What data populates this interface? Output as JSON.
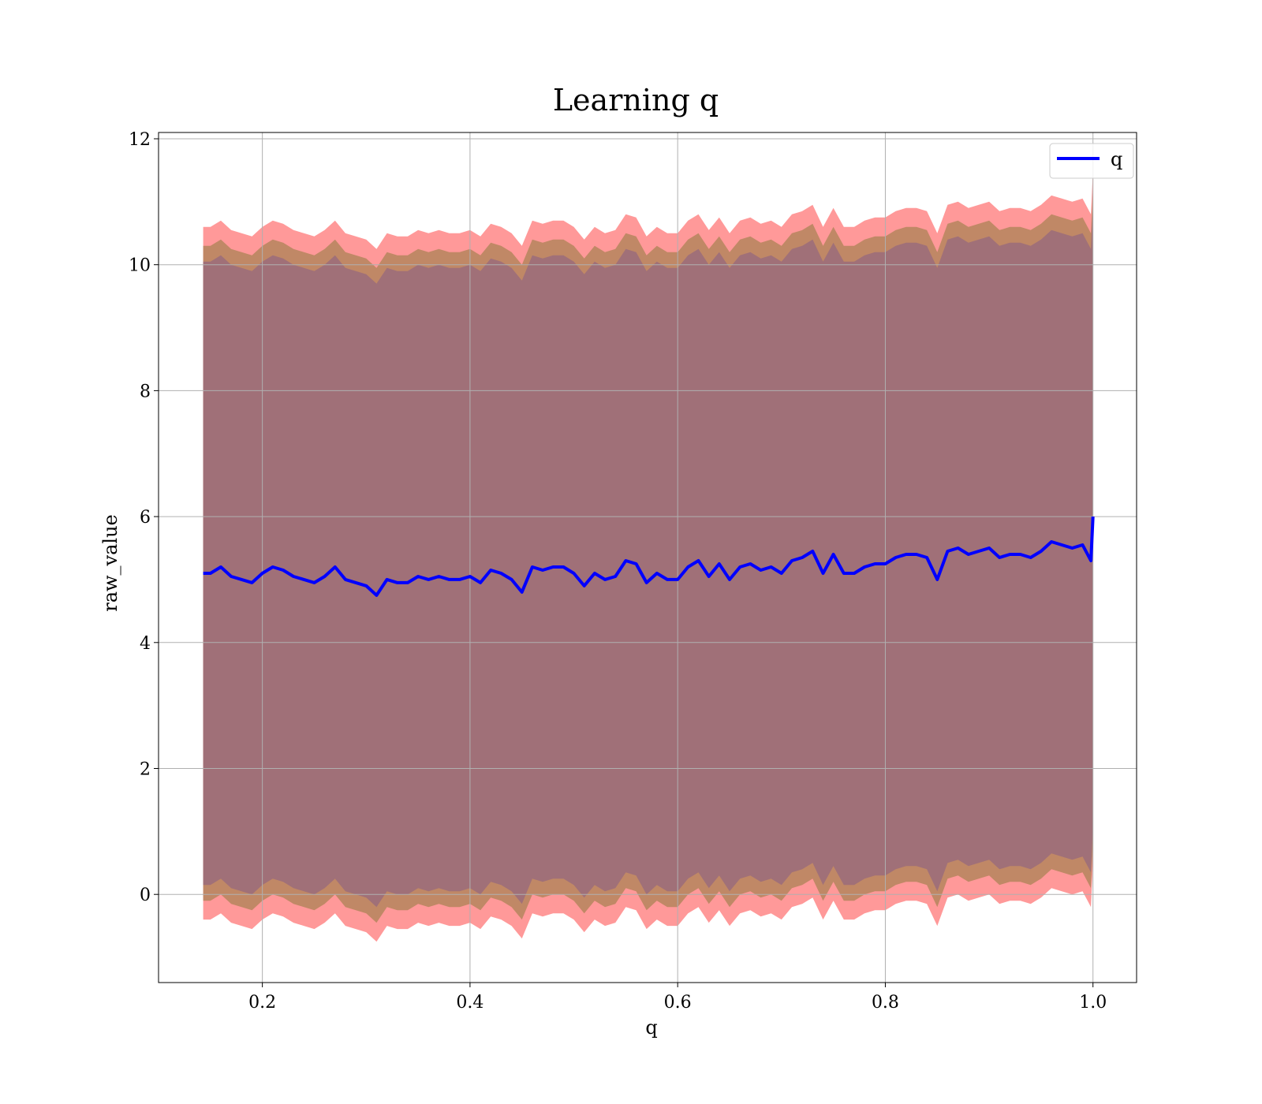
{
  "chart_data": {
    "type": "area",
    "title": "Learning q",
    "xlabel": "q",
    "ylabel": "raw_value",
    "xlim": [
      0.1,
      1.042
    ],
    "ylim": [
      -1.4,
      12.1
    ],
    "x_ticks": [
      0.2,
      0.4,
      0.6,
      0.8,
      1.0
    ],
    "x_tick_labels": [
      "0.2",
      "0.4",
      "0.6",
      "0.8",
      "1.0"
    ],
    "y_ticks": [
      0,
      2,
      4,
      6,
      8,
      10,
      12
    ],
    "y_tick_labels": [
      "0",
      "2",
      "4",
      "6",
      "8",
      "10",
      "12"
    ],
    "grid": true,
    "legend": {
      "position": "top-right",
      "entries": [
        "q"
      ]
    },
    "colors": {
      "line": "#0000ff",
      "outer_band": "#ff9999",
      "middle_band": "#c08866",
      "inner_band": "#a07078",
      "grid": "#b0b0b0"
    },
    "x": [
      0.143,
      0.15,
      0.16,
      0.17,
      0.18,
      0.19,
      0.2,
      0.21,
      0.22,
      0.23,
      0.24,
      0.25,
      0.26,
      0.27,
      0.28,
      0.29,
      0.3,
      0.31,
      0.32,
      0.33,
      0.34,
      0.35,
      0.36,
      0.37,
      0.38,
      0.39,
      0.4,
      0.41,
      0.42,
      0.43,
      0.44,
      0.45,
      0.46,
      0.47,
      0.48,
      0.49,
      0.5,
      0.51,
      0.52,
      0.53,
      0.54,
      0.55,
      0.56,
      0.57,
      0.58,
      0.59,
      0.6,
      0.61,
      0.62,
      0.63,
      0.64,
      0.65,
      0.66,
      0.67,
      0.68,
      0.69,
      0.7,
      0.71,
      0.72,
      0.73,
      0.74,
      0.75,
      0.76,
      0.77,
      0.78,
      0.79,
      0.8,
      0.81,
      0.82,
      0.83,
      0.84,
      0.85,
      0.86,
      0.87,
      0.88,
      0.89,
      0.9,
      0.91,
      0.92,
      0.93,
      0.94,
      0.95,
      0.96,
      0.97,
      0.98,
      0.99,
      0.998,
      1.0
    ],
    "series": [
      {
        "name": "q",
        "values": [
          5.1,
          5.1,
          5.2,
          5.05,
          5.0,
          4.95,
          5.1,
          5.2,
          5.15,
          5.05,
          5.0,
          4.95,
          5.05,
          5.2,
          5.0,
          4.95,
          4.9,
          4.75,
          5.0,
          4.95,
          4.95,
          5.05,
          5.0,
          5.05,
          5.0,
          5.0,
          5.05,
          4.95,
          5.15,
          5.1,
          5.0,
          4.8,
          5.2,
          5.15,
          5.2,
          5.2,
          5.1,
          4.9,
          5.1,
          5.0,
          5.05,
          5.3,
          5.25,
          4.95,
          5.1,
          5.0,
          5.0,
          5.2,
          5.3,
          5.05,
          5.25,
          5.0,
          5.2,
          5.25,
          5.15,
          5.2,
          5.1,
          5.3,
          5.35,
          5.45,
          5.1,
          5.4,
          5.1,
          5.1,
          5.2,
          5.25,
          5.25,
          5.35,
          5.4,
          5.4,
          5.35,
          5.0,
          5.45,
          5.5,
          5.4,
          5.45,
          5.5,
          5.35,
          5.4,
          5.4,
          5.35,
          5.45,
          5.6,
          5.55,
          5.5,
          5.55,
          5.3,
          6.0
        ]
      }
    ],
    "bands": [
      {
        "lower_offset": -5.5,
        "upper_offset": 5.5
      },
      {
        "lower_offset": -5.2,
        "upper_offset": 5.2
      },
      {
        "lower_offset": -4.95,
        "upper_offset": 4.95
      }
    ]
  }
}
